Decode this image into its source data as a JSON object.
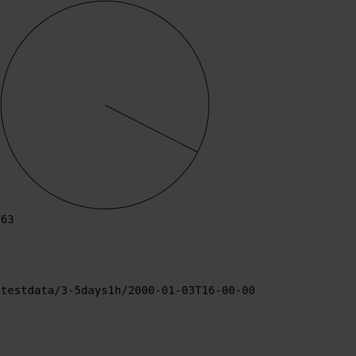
{
  "dial": {
    "value": 63,
    "value_label": "63",
    "stroke_color": "#000000",
    "background_color": "#404040"
  },
  "data_path": "testdata/3-5days1h/2000-01-03T16-00-00"
}
